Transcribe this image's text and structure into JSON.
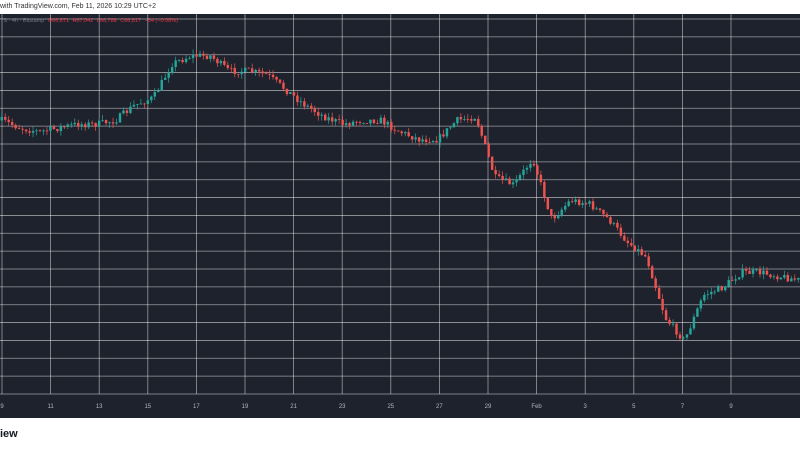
{
  "header": {
    "caption": "with TradingView.com, Feb 11, 2026 10:29 UTC+2"
  },
  "legend": {
    "prefix": "TS · 4h · Bitstamp",
    "open": "O66,871",
    "high": "H67,042",
    "low": "L66,788",
    "close": "C66,817",
    "change": "−54 (−0.08%)"
  },
  "footer": {
    "brand": "iew"
  },
  "colors": {
    "background": "#1e222d",
    "grid": "#ffffff",
    "up": "#26a69a",
    "down": "#ef5350",
    "axis_text": "#b2b5be"
  },
  "chart_data": {
    "type": "candlestick",
    "x_tick_labels": [
      "9",
      "11",
      "13",
      "15",
      "17",
      "19",
      "21",
      "23",
      "25",
      "27",
      "29",
      "Feb",
      "3",
      "5",
      "7",
      "9"
    ],
    "price_path_vertical_fraction_from_top": [
      0.28,
      0.3,
      0.31,
      0.3,
      0.29,
      0.29,
      0.28,
      0.24,
      0.22,
      0.13,
      0.11,
      0.11,
      0.15,
      0.15,
      0.16,
      0.2,
      0.24,
      0.27,
      0.29,
      0.28,
      0.28,
      0.31,
      0.33,
      0.33,
      0.28,
      0.27,
      0.43,
      0.45,
      0.38,
      0.54,
      0.49,
      0.5,
      0.54,
      0.6,
      0.64,
      0.8,
      0.86,
      0.74,
      0.72,
      0.68,
      0.68,
      0.69,
      0.7
    ],
    "grid": true,
    "legend_position": "top-left"
  }
}
